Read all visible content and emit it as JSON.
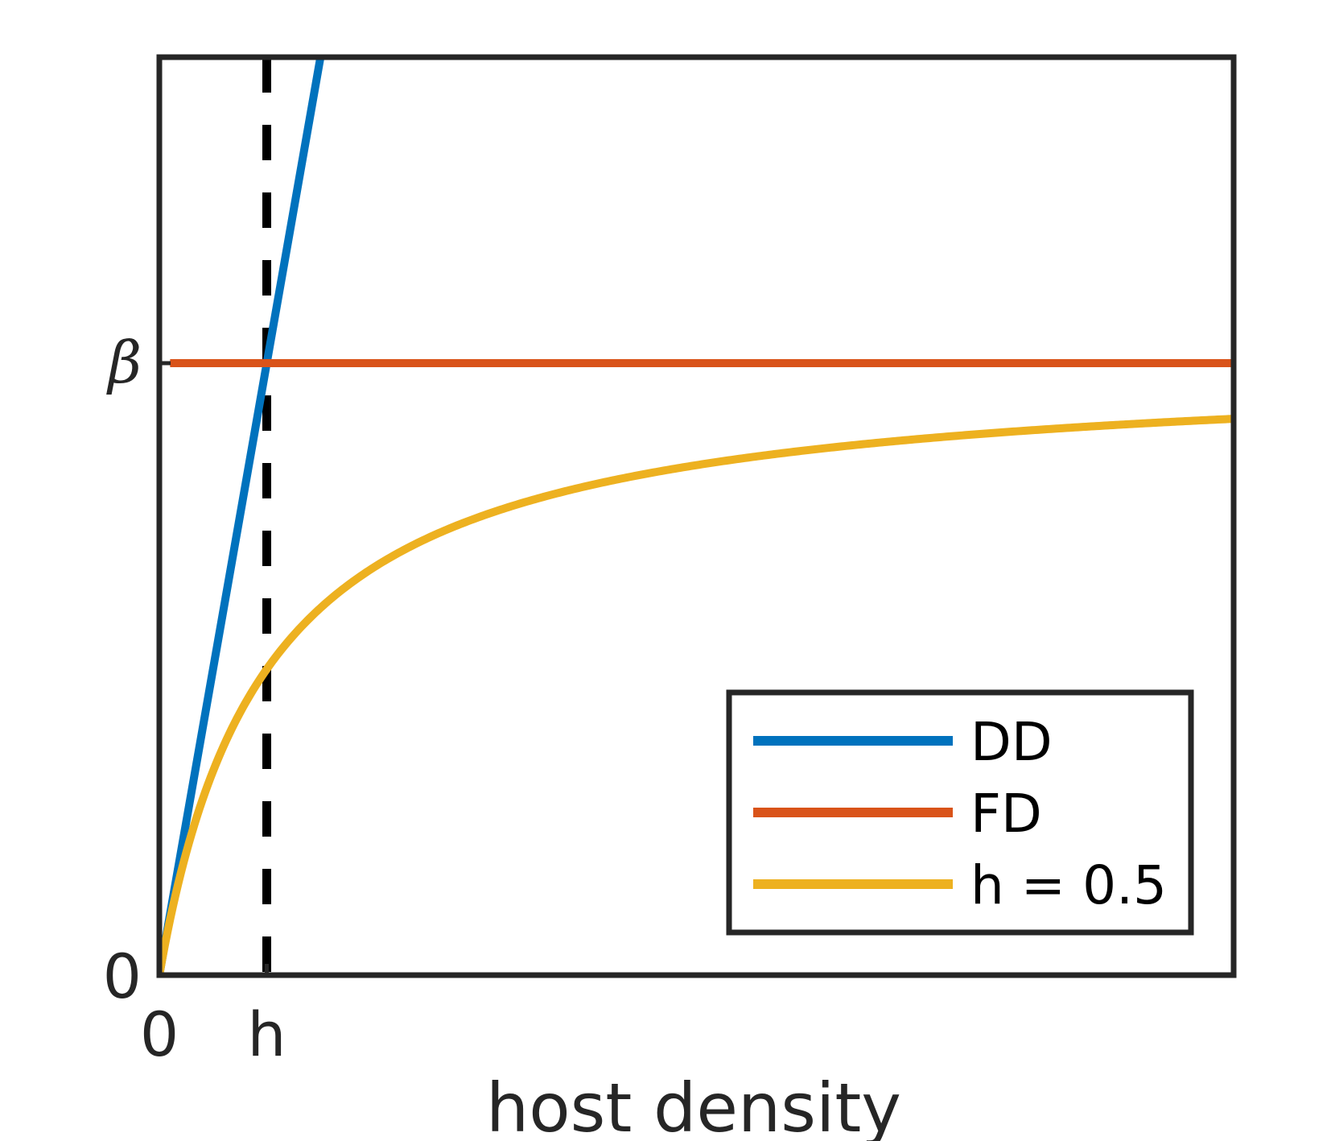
{
  "chart_data": {
    "type": "line",
    "title": "",
    "xlabel": "host density",
    "ylabel": "",
    "xlim": [
      0,
      5
    ],
    "ylim": [
      0,
      1.5
    ],
    "x_ticks": [
      {
        "value": 0,
        "label": "0"
      },
      {
        "value": 0.5,
        "label": "h"
      }
    ],
    "y_ticks": [
      {
        "value": 0,
        "label": "0"
      },
      {
        "value": 1,
        "label": "β"
      }
    ],
    "grid": false,
    "legend": "bottom-right",
    "reference_line": {
      "type": "vertical",
      "x": 0.5,
      "style": "dashed",
      "color": "#000000"
    },
    "series": [
      {
        "name": "DD",
        "function": "beta*x/h",
        "color": "#0072BD",
        "x": [
          0,
          1.5
        ],
        "values": [
          0,
          3
        ]
      },
      {
        "name": "FD",
        "function": "beta",
        "color": "#D95319",
        "x": [
          0.05,
          5
        ],
        "values": [
          1,
          1
        ]
      },
      {
        "name": "h = 0.5",
        "function": "beta*x/(x+h)",
        "color": "#EDB120",
        "x": [
          0,
          5
        ],
        "values": [
          0,
          0.909
        ]
      }
    ]
  }
}
